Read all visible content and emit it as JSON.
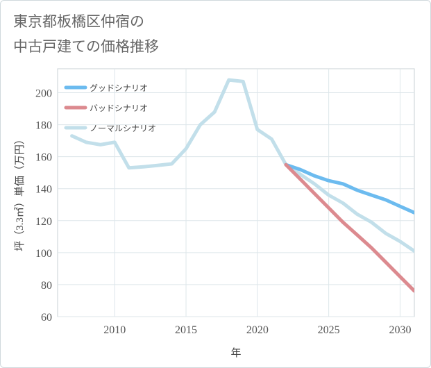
{
  "title_lines": [
    "東京都板橋区仲宿の",
    "中古戸建ての価格推移"
  ],
  "chart_data": {
    "type": "line",
    "title": "東京都板橋区仲宿の中古戸建ての価格推移",
    "xlabel": "年",
    "ylabel": "坪（3.3㎡）単価（万円）",
    "xlim": [
      2006,
      2031
    ],
    "ylim": [
      60,
      215
    ],
    "xticks": [
      2010,
      2015,
      2020,
      2025,
      2030
    ],
    "yticks": [
      60,
      80,
      100,
      120,
      140,
      160,
      180,
      200
    ],
    "grid": true,
    "legend_position": "top-left",
    "series": [
      {
        "name": "グッドシナリオ",
        "color": "#6cbbef",
        "x": [
          2022,
          2023,
          2024,
          2025,
          2026,
          2027,
          2028,
          2029,
          2030,
          2031
        ],
        "values": [
          155,
          152,
          148,
          145,
          143,
          139,
          136,
          133,
          129,
          125
        ]
      },
      {
        "name": "バッドシナリオ",
        "color": "#dc8a8f",
        "x": [
          2022,
          2023,
          2024,
          2025,
          2026,
          2027,
          2028,
          2029,
          2030,
          2031
        ],
        "values": [
          155,
          146,
          137,
          128,
          119,
          111,
          103,
          94,
          85,
          76
        ]
      },
      {
        "name": "ノーマルシナリオ",
        "color": "#c2dfea",
        "x": [
          2007,
          2008,
          2009,
          2010,
          2011,
          2012,
          2013,
          2014,
          2015,
          2016,
          2017,
          2018,
          2019,
          2020,
          2021,
          2022,
          2023,
          2024,
          2025,
          2026,
          2027,
          2028,
          2029,
          2030,
          2031
        ],
        "values": [
          173,
          169,
          167.5,
          169,
          153,
          153.7,
          154.5,
          155.5,
          165,
          180,
          188,
          208,
          207,
          177,
          171,
          155,
          149,
          143,
          136,
          131,
          124,
          119,
          112,
          107,
          101
        ]
      }
    ]
  }
}
